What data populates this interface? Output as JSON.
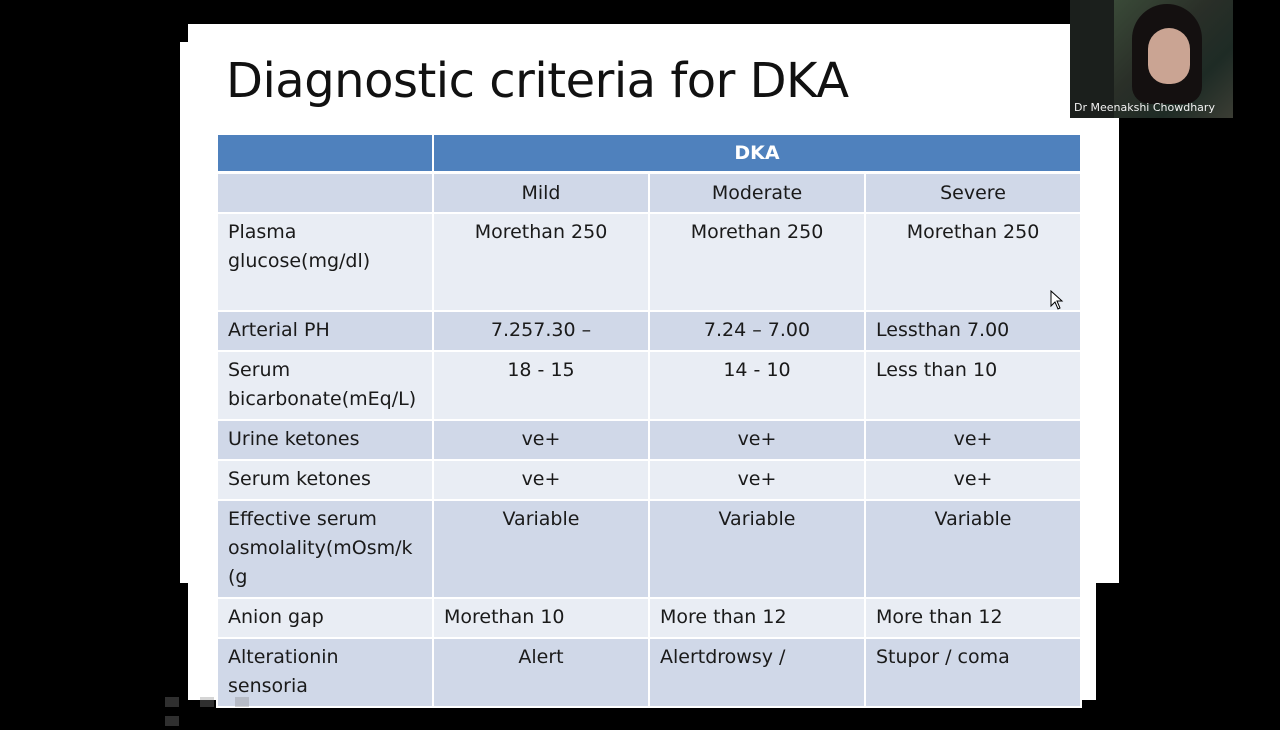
{
  "slide": {
    "title": "Diagnostic criteria for DKA"
  },
  "table": {
    "group_header": "DKA",
    "columns": [
      "Mild",
      "Moderate",
      "Severe"
    ],
    "rows": [
      {
        "label": "Plasma glucose(mg/dl)",
        "values": [
          "Morethan 250",
          "Morethan 250",
          "Morethan 250"
        ]
      },
      {
        "label": "Arterial PH",
        "values": [
          "7.257.30 –",
          "7.24 – 7.00",
          "Lessthan 7.00"
        ]
      },
      {
        "label": "Serum bicarbonate(mEq/L)",
        "values": [
          "18 - 15",
          "14 - 10",
          "Less than 10"
        ]
      },
      {
        "label": "Urine ketones",
        "values": [
          "ve+",
          "ve+",
          "ve+"
        ]
      },
      {
        "label": "Serum ketones",
        "values": [
          "ve+",
          "ve+",
          "ve+"
        ]
      },
      {
        "label": "Effective serum osmolality(mOsm/k (g",
        "values": [
          "Variable",
          "Variable",
          "Variable"
        ]
      },
      {
        "label": "Anion gap",
        "values": [
          "Morethan 10",
          "More than 12",
          "More than 12"
        ]
      },
      {
        "label": "Alterationin sensoria",
        "values": [
          "Alert",
          "Alertdrowsy /",
          "Stupor / coma"
        ]
      }
    ]
  },
  "participant": {
    "name": "Dr Meenakshi Chowdhary"
  },
  "colors": {
    "header_blue": "#4f81bd",
    "row_dark": "#d0d8e8",
    "row_light": "#e9edf4"
  }
}
